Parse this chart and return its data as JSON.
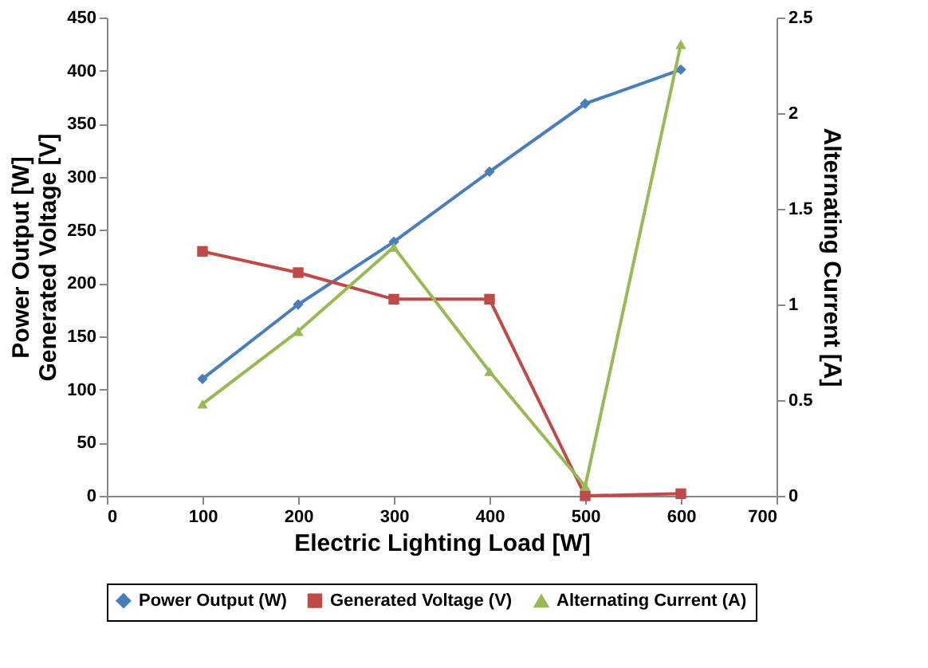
{
  "chart_data": {
    "type": "line",
    "xlabel": "Electric Lighting Load [W]",
    "ylabel": "Power Output [W]\nGenerated Voltage [V]",
    "y2label": "Alternating Current [A]",
    "x": [
      100,
      200,
      300,
      400,
      500,
      600
    ],
    "series": [
      {
        "name": "Power Output (W)",
        "color": "#4a7ebb",
        "marker": "diamond",
        "values": [
          110,
          180,
          239,
          305,
          369,
          401
        ]
      },
      {
        "name": "Generated Voltage (V)",
        "color": "#be4b48",
        "marker": "square",
        "values": [
          230,
          210,
          185,
          185,
          0,
          2
        ]
      },
      {
        "name": "Alternating Current (A)",
        "color": "#98b954",
        "marker": "triangle",
        "axis": "y2",
        "values": [
          0.48,
          0.86,
          1.3,
          0.65,
          0.05,
          2.36
        ]
      }
    ],
    "xlim": [
      0,
      700
    ],
    "xticks": [
      0,
      100,
      200,
      300,
      400,
      500,
      600,
      700
    ],
    "ylim": [
      0,
      450
    ],
    "yticks": [
      0,
      50,
      100,
      150,
      200,
      250,
      300,
      350,
      400,
      450
    ],
    "y2lim": [
      0,
      2.5
    ],
    "y2ticks": [
      0,
      0.5,
      1,
      1.5,
      2,
      2.5
    ],
    "legend": "bottom",
    "grid": false
  }
}
